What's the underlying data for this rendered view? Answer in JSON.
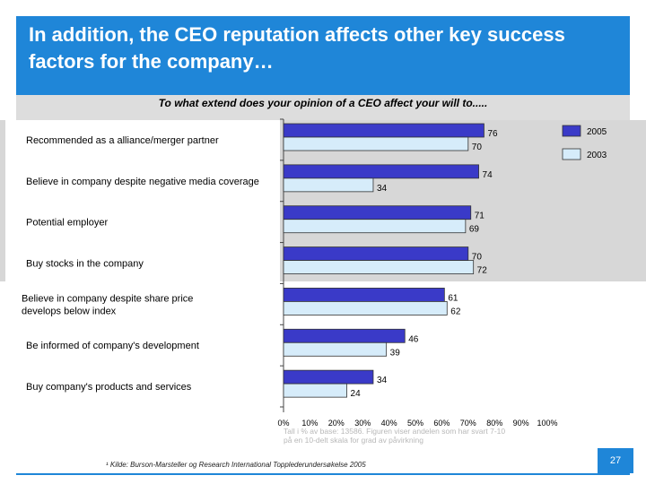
{
  "header": {
    "title": "In addition, the CEO reputation affects other key success factors for the company…"
  },
  "chart_data": {
    "type": "bar",
    "orientation": "horizontal",
    "title": "To what extend does your opinion of a CEO affect your will to.....",
    "categories": [
      "Recommended as a alliance/merger partner",
      "Believe in company despite negative media coverage",
      "Potential employer",
      "Buy stocks in the company",
      "Believe in company despite share price develops below index",
      "Be informed of company's development",
      "Buy company's products and services"
    ],
    "series": [
      {
        "name": "2005",
        "values": [
          76,
          74,
          71,
          70,
          61,
          46,
          34
        ],
        "color": "#3a3ac8"
      },
      {
        "name": "2003",
        "values": [
          70,
          34,
          69,
          72,
          62,
          39,
          24
        ],
        "color": "#d6ecfa"
      }
    ],
    "xlim": [
      0,
      100
    ],
    "ticks": [
      "0%",
      "10%",
      "20%",
      "30%",
      "40%",
      "50%",
      "60%",
      "70%",
      "80%",
      "90%",
      "100%"
    ],
    "legend": "top-right",
    "grid": false
  },
  "note": "Tall i % av base: 13586. Figuren viser andelen som har svart 7-10 på en 10-delt skala for grad av påvirkning",
  "source": "¹ Kilde: Burson-Marsteller og Research International Topplederundersøkelse 2005",
  "page_number": "27"
}
